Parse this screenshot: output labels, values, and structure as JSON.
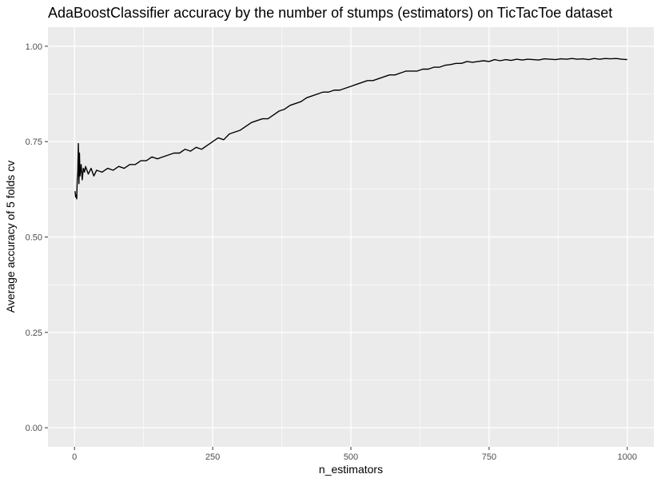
{
  "chart_data": {
    "type": "line",
    "title": "AdaBoostClassifier accuracy by the number of stumps (estimators) on TicTacToe dataset",
    "xlabel": "n_estimators",
    "ylabel": "Average accuracy of 5 folds cv",
    "xlim": [
      -48,
      1048
    ],
    "ylim": [
      -0.05,
      1.05
    ],
    "x_ticks": [
      0,
      250,
      500,
      750,
      1000
    ],
    "x_tick_labels": [
      "0",
      "250",
      "500",
      "750",
      "1000"
    ],
    "y_ticks": [
      0,
      0.25,
      0.5,
      0.75,
      1.0
    ],
    "y_tick_labels": [
      "0.00",
      "0.25",
      "0.50",
      "0.75",
      "1.00"
    ],
    "grid": true,
    "legend": "none",
    "colors": {
      "panel": "#ebebeb",
      "grid": "#ffffff",
      "line": "#000000",
      "tick": "#333333"
    },
    "series": [
      {
        "color": "#000000",
        "x": [
          1,
          2,
          3,
          4,
          5,
          6,
          7,
          8,
          9,
          10,
          12,
          14,
          16,
          18,
          20,
          25,
          30,
          35,
          40,
          50,
          60,
          70,
          80,
          90,
          100,
          110,
          120,
          130,
          140,
          150,
          160,
          170,
          180,
          190,
          200,
          210,
          220,
          230,
          240,
          250,
          260,
          270,
          280,
          290,
          300,
          310,
          320,
          330,
          340,
          350,
          360,
          370,
          380,
          390,
          400,
          410,
          420,
          430,
          440,
          450,
          460,
          470,
          480,
          490,
          500,
          510,
          520,
          530,
          540,
          550,
          560,
          570,
          580,
          590,
          600,
          610,
          620,
          630,
          640,
          650,
          660,
          670,
          680,
          690,
          700,
          710,
          720,
          730,
          740,
          750,
          760,
          770,
          780,
          790,
          800,
          810,
          820,
          830,
          840,
          850,
          860,
          870,
          880,
          890,
          900,
          910,
          920,
          930,
          940,
          950,
          960,
          970,
          980,
          990,
          1000
        ],
        "y": [
          0.62,
          0.605,
          0.61,
          0.6,
          0.65,
          0.67,
          0.745,
          0.64,
          0.72,
          0.66,
          0.69,
          0.65,
          0.68,
          0.67,
          0.685,
          0.665,
          0.68,
          0.66,
          0.675,
          0.67,
          0.68,
          0.675,
          0.685,
          0.68,
          0.69,
          0.69,
          0.7,
          0.7,
          0.71,
          0.705,
          0.71,
          0.715,
          0.72,
          0.72,
          0.73,
          0.725,
          0.735,
          0.73,
          0.74,
          0.75,
          0.76,
          0.755,
          0.77,
          0.775,
          0.78,
          0.79,
          0.8,
          0.805,
          0.81,
          0.81,
          0.82,
          0.83,
          0.835,
          0.845,
          0.85,
          0.855,
          0.865,
          0.87,
          0.875,
          0.88,
          0.88,
          0.885,
          0.885,
          0.89,
          0.895,
          0.9,
          0.905,
          0.91,
          0.91,
          0.915,
          0.92,
          0.925,
          0.925,
          0.93,
          0.935,
          0.935,
          0.935,
          0.94,
          0.94,
          0.945,
          0.945,
          0.95,
          0.952,
          0.955,
          0.955,
          0.96,
          0.958,
          0.96,
          0.962,
          0.96,
          0.965,
          0.962,
          0.965,
          0.963,
          0.966,
          0.964,
          0.966,
          0.965,
          0.964,
          0.967,
          0.966,
          0.965,
          0.967,
          0.966,
          0.968,
          0.966,
          0.967,
          0.965,
          0.968,
          0.966,
          0.968,
          0.967,
          0.968,
          0.966,
          0.965
        ]
      }
    ]
  }
}
